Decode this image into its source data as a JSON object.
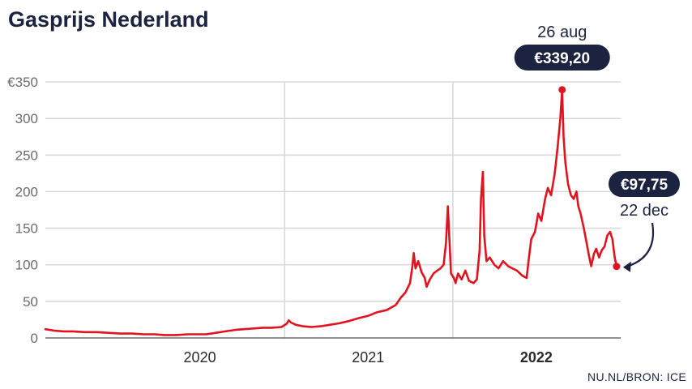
{
  "chart_data": {
    "type": "line",
    "title": "Gasprijs Nederland",
    "source": "NU.NL/BRON: ICE",
    "ylim": [
      0,
      350
    ],
    "y_ticks": [
      {
        "value": 0,
        "label": "0"
      },
      {
        "value": 50,
        "label": "50"
      },
      {
        "value": 100,
        "label": "100"
      },
      {
        "value": 150,
        "label": "150"
      },
      {
        "value": 200,
        "label": "200"
      },
      {
        "value": 250,
        "label": "250"
      },
      {
        "value": 300,
        "label": "300"
      },
      {
        "value": 350,
        "label": "€350"
      }
    ],
    "x_range": [
      "2019-08-01",
      "2022-12-31"
    ],
    "x_ticks": [
      {
        "date": "2020-07-01",
        "label": "2020",
        "bold": false
      },
      {
        "date": "2021-07-01",
        "label": "2021",
        "bold": false
      },
      {
        "date": "2022-07-01",
        "label": "2022",
        "bold": true
      }
    ],
    "x_gridlines": [
      "2021-01-01",
      "2022-01-01"
    ],
    "grid": true,
    "series": [
      {
        "color": "#e0131e",
        "points": [
          [
            "2019-08-01",
            12
          ],
          [
            "2019-08-20",
            10
          ],
          [
            "2019-09-10",
            9
          ],
          [
            "2019-10-01",
            9
          ],
          [
            "2019-10-25",
            8
          ],
          [
            "2019-11-20",
            8
          ],
          [
            "2019-12-15",
            7
          ],
          [
            "2020-01-10",
            6
          ],
          [
            "2020-02-05",
            6
          ],
          [
            "2020-03-01",
            5
          ],
          [
            "2020-03-25",
            5
          ],
          [
            "2020-04-15",
            4
          ],
          [
            "2020-05-10",
            4
          ],
          [
            "2020-06-05",
            5
          ],
          [
            "2020-06-25",
            5
          ],
          [
            "2020-07-15",
            5
          ],
          [
            "2020-08-05",
            7
          ],
          [
            "2020-08-25",
            9
          ],
          [
            "2020-09-15",
            11
          ],
          [
            "2020-10-05",
            12
          ],
          [
            "2020-10-25",
            13
          ],
          [
            "2020-11-15",
            14
          ],
          [
            "2020-12-05",
            14
          ],
          [
            "2020-12-25",
            15
          ],
          [
            "2021-01-05",
            19
          ],
          [
            "2021-01-10",
            24
          ],
          [
            "2021-01-15",
            21
          ],
          [
            "2021-01-25",
            18
          ],
          [
            "2021-02-10",
            16
          ],
          [
            "2021-02-28",
            15
          ],
          [
            "2021-03-20",
            16
          ],
          [
            "2021-04-10",
            18
          ],
          [
            "2021-04-30",
            20
          ],
          [
            "2021-05-20",
            23
          ],
          [
            "2021-06-10",
            27
          ],
          [
            "2021-06-30",
            30
          ],
          [
            "2021-07-20",
            35
          ],
          [
            "2021-08-10",
            38
          ],
          [
            "2021-08-30",
            45
          ],
          [
            "2021-09-10",
            55
          ],
          [
            "2021-09-20",
            62
          ],
          [
            "2021-09-30",
            75
          ],
          [
            "2021-10-05",
            98
          ],
          [
            "2021-10-08",
            116
          ],
          [
            "2021-10-12",
            95
          ],
          [
            "2021-10-18",
            105
          ],
          [
            "2021-10-25",
            90
          ],
          [
            "2021-11-01",
            82
          ],
          [
            "2021-11-05",
            70
          ],
          [
            "2021-11-12",
            80
          ],
          [
            "2021-11-20",
            88
          ],
          [
            "2021-11-28",
            92
          ],
          [
            "2021-12-05",
            95
          ],
          [
            "2021-12-12",
            100
          ],
          [
            "2021-12-17",
            130
          ],
          [
            "2021-12-21",
            180
          ],
          [
            "2021-12-24",
            140
          ],
          [
            "2021-12-28",
            88
          ],
          [
            "2022-01-03",
            82
          ],
          [
            "2022-01-07",
            75
          ],
          [
            "2022-01-12",
            88
          ],
          [
            "2022-01-20",
            80
          ],
          [
            "2022-01-28",
            92
          ],
          [
            "2022-02-05",
            78
          ],
          [
            "2022-02-15",
            75
          ],
          [
            "2022-02-22",
            80
          ],
          [
            "2022-02-28",
            120
          ],
          [
            "2022-03-03",
            190
          ],
          [
            "2022-03-07",
            227
          ],
          [
            "2022-03-10",
            140
          ],
          [
            "2022-03-15",
            105
          ],
          [
            "2022-03-22",
            110
          ],
          [
            "2022-04-01",
            100
          ],
          [
            "2022-04-10",
            95
          ],
          [
            "2022-04-20",
            105
          ],
          [
            "2022-05-01",
            98
          ],
          [
            "2022-05-10",
            95
          ],
          [
            "2022-05-20",
            92
          ],
          [
            "2022-06-01",
            85
          ],
          [
            "2022-06-10",
            82
          ],
          [
            "2022-06-15",
            110
          ],
          [
            "2022-06-20",
            135
          ],
          [
            "2022-06-28",
            145
          ],
          [
            "2022-07-05",
            170
          ],
          [
            "2022-07-12",
            160
          ],
          [
            "2022-07-20",
            190
          ],
          [
            "2022-07-26",
            205
          ],
          [
            "2022-08-02",
            195
          ],
          [
            "2022-08-10",
            225
          ],
          [
            "2022-08-16",
            260
          ],
          [
            "2022-08-22",
            300
          ],
          [
            "2022-08-26",
            339.2
          ],
          [
            "2022-08-29",
            275
          ],
          [
            "2022-09-02",
            240
          ],
          [
            "2022-09-08",
            210
          ],
          [
            "2022-09-14",
            195
          ],
          [
            "2022-09-20",
            190
          ],
          [
            "2022-09-26",
            200
          ],
          [
            "2022-09-30",
            180
          ],
          [
            "2022-10-05",
            170
          ],
          [
            "2022-10-12",
            150
          ],
          [
            "2022-10-18",
            130
          ],
          [
            "2022-10-24",
            110
          ],
          [
            "2022-10-28",
            98
          ],
          [
            "2022-11-03",
            115
          ],
          [
            "2022-11-08",
            122
          ],
          [
            "2022-11-14",
            110
          ],
          [
            "2022-11-20",
            120
          ],
          [
            "2022-11-26",
            125
          ],
          [
            "2022-12-02",
            140
          ],
          [
            "2022-12-08",
            145
          ],
          [
            "2022-12-13",
            135
          ],
          [
            "2022-12-18",
            110
          ],
          [
            "2022-12-22",
            97.75
          ]
        ]
      }
    ],
    "annotations": [
      {
        "date": "2022-08-26",
        "value": 339.2,
        "date_label": "26 aug",
        "value_label": "€339,20"
      },
      {
        "date": "2022-12-22",
        "value": 97.75,
        "date_label": "22 dec",
        "value_label": "€97,75"
      }
    ],
    "colors": {
      "line": "#e0131e",
      "badge": "#1c2340",
      "grid": "#d9d9d9",
      "axis": "#6b6b6b"
    }
  }
}
